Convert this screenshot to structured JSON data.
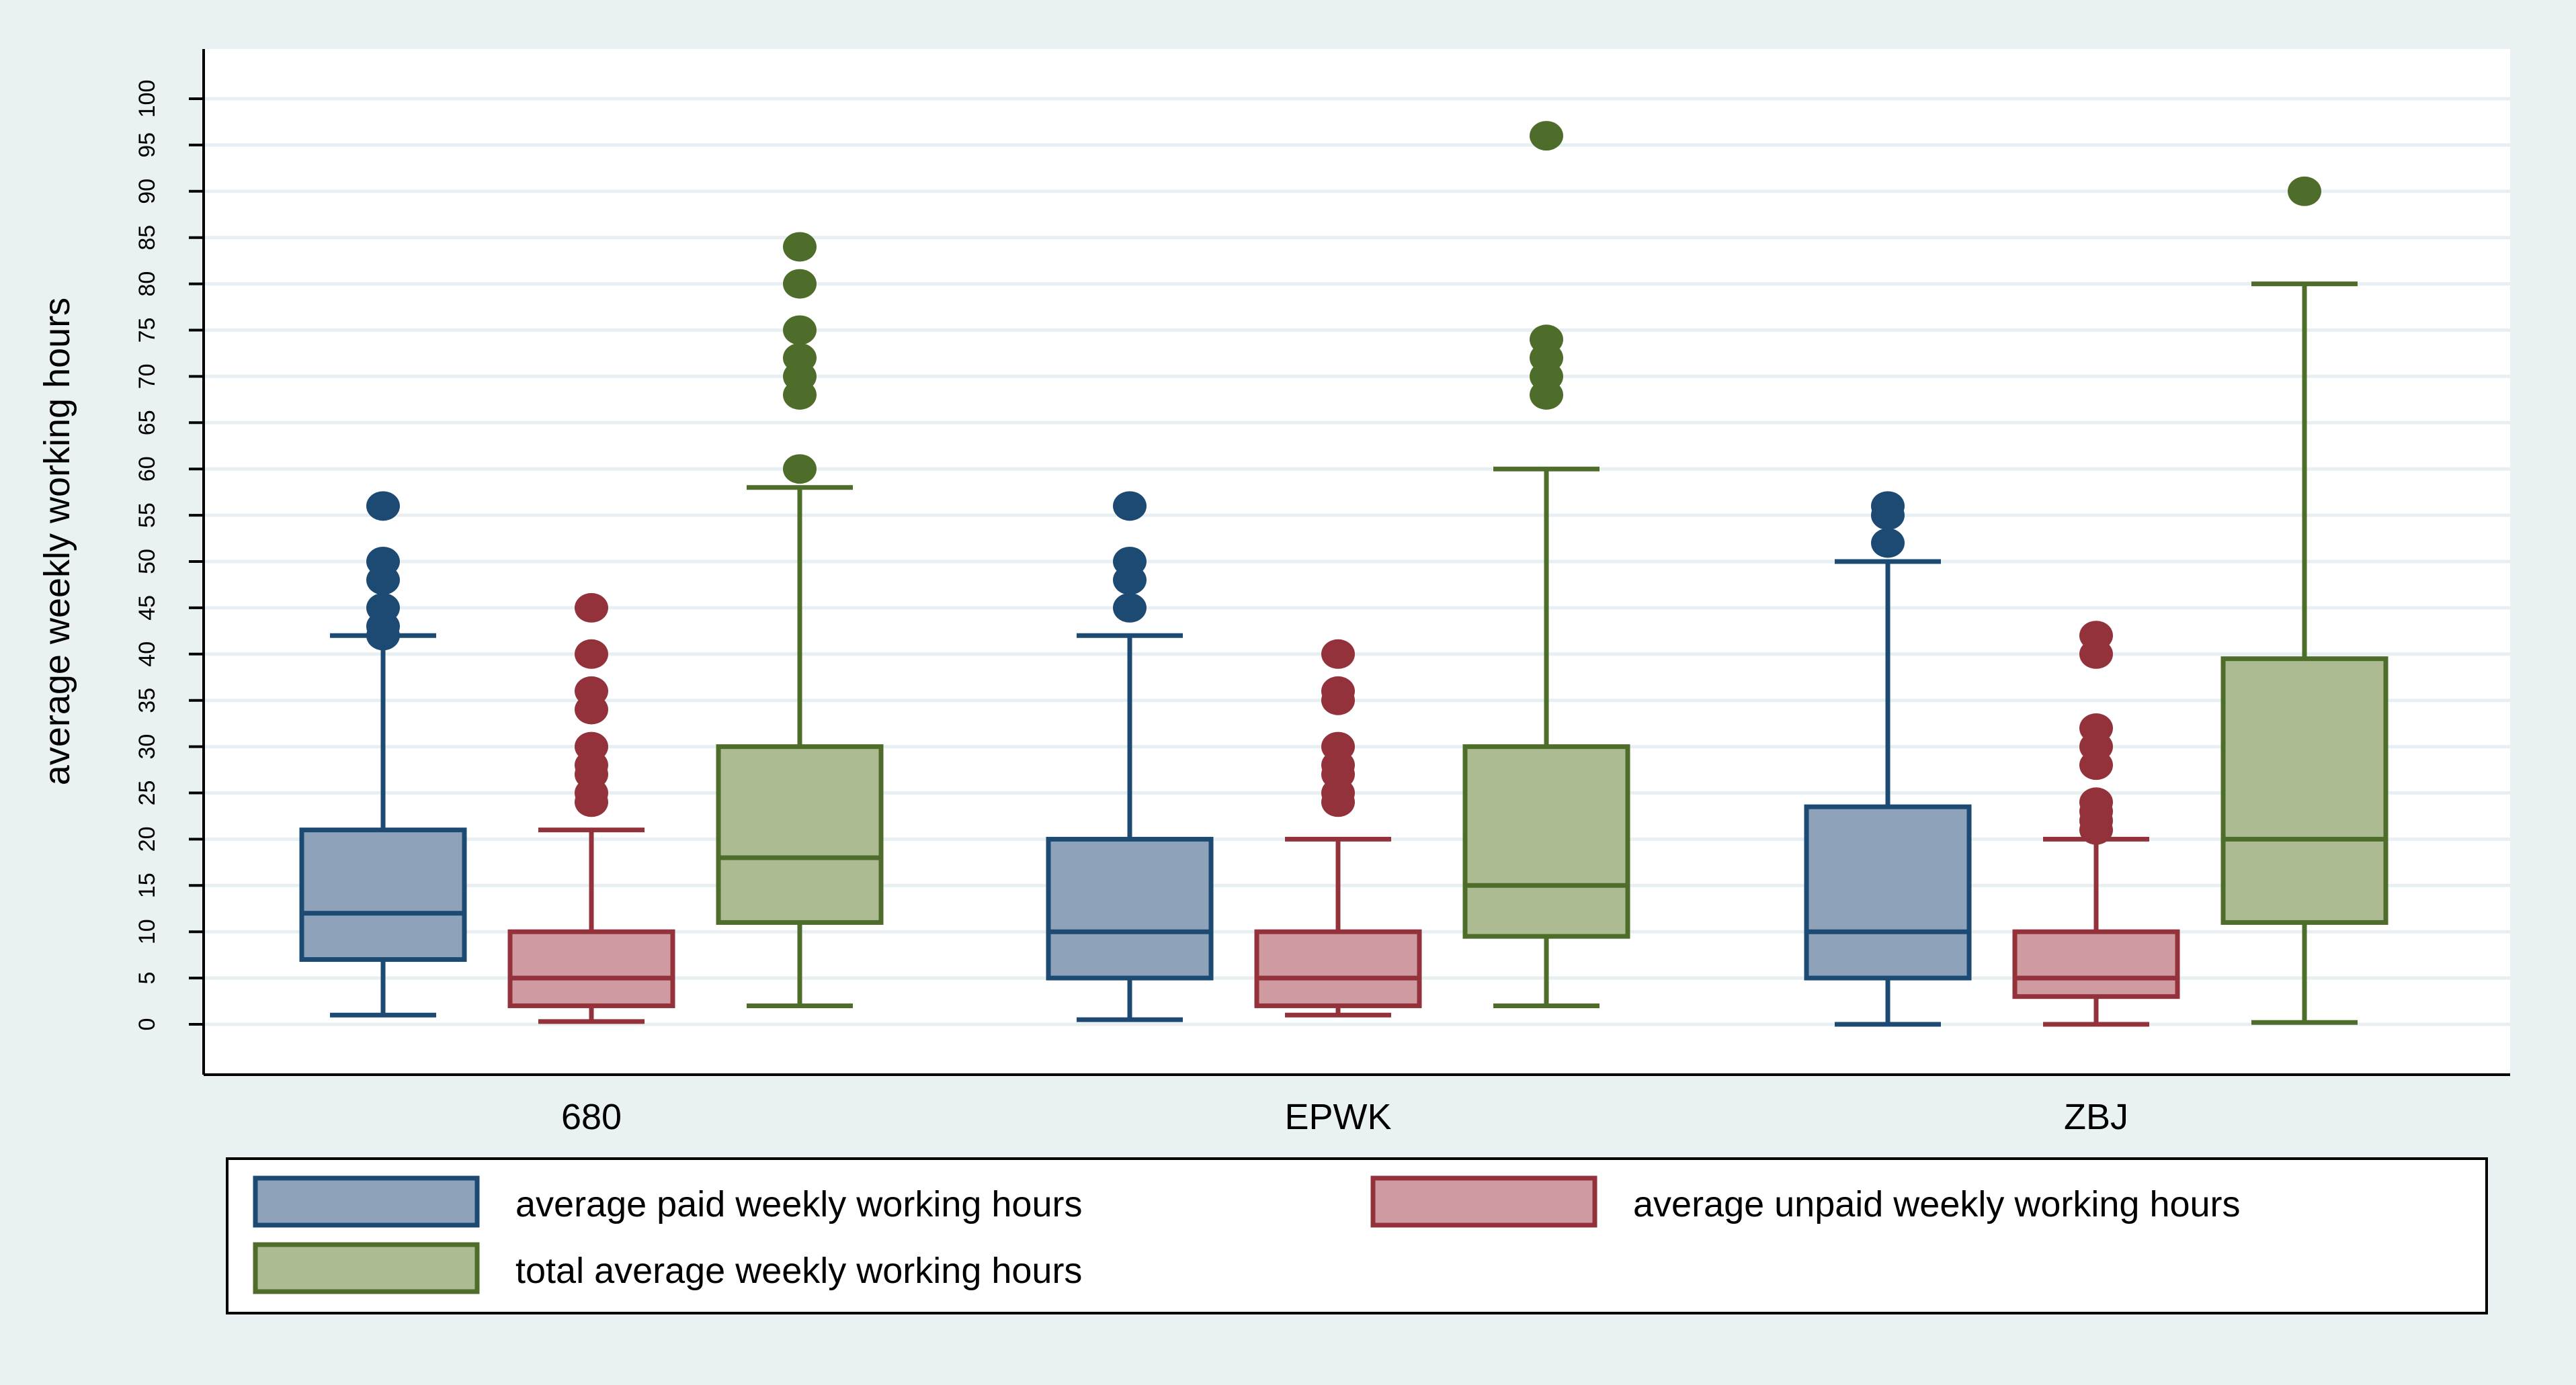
{
  "chart_data": {
    "type": "box",
    "title": "",
    "xlabel": "",
    "ylabel": "average weekly working hours",
    "ylim": [
      0,
      100
    ],
    "ytick_step": 5,
    "grid": true,
    "legend_position": "bottom",
    "categories": [
      "680",
      "EPWK",
      "ZBJ"
    ],
    "series": [
      {
        "name": "average paid weekly working hours",
        "fill": "#8ea3b9",
        "stroke": "#1d4a73",
        "boxes": [
          {
            "min": 1,
            "q1": 7,
            "median": 12,
            "q3": 21,
            "max": 42,
            "outliers": [
              42,
              43,
              45,
              48,
              50,
              56
            ]
          },
          {
            "min": 0.5,
            "q1": 5,
            "median": 10,
            "q3": 20,
            "max": 42,
            "outliers": [
              45,
              48,
              50,
              56
            ]
          },
          {
            "min": 0,
            "q1": 5,
            "median": 10,
            "q3": 23.5,
            "max": 50,
            "outliers": [
              52,
              55,
              56
            ]
          }
        ]
      },
      {
        "name": "average unpaid weekly working hours",
        "fill": "#cf9aa0",
        "stroke": "#94323c",
        "boxes": [
          {
            "min": 0.3,
            "q1": 2,
            "median": 5,
            "q3": 10,
            "max": 21,
            "outliers": [
              24,
              25,
              27,
              28,
              30,
              34,
              36,
              40,
              45
            ]
          },
          {
            "min": 1,
            "q1": 2,
            "median": 5,
            "q3": 10,
            "max": 20,
            "outliers": [
              24,
              25,
              27,
              28,
              30,
              35,
              36,
              40
            ]
          },
          {
            "min": 0,
            "q1": 3,
            "median": 5,
            "q3": 10,
            "max": 20,
            "outliers": [
              21,
              22,
              23,
              24,
              28,
              30,
              32,
              40,
              42
            ]
          }
        ]
      },
      {
        "name": "total average weekly working hours",
        "fill": "#acbb91",
        "stroke": "#4e6d2a",
        "boxes": [
          {
            "min": 2,
            "q1": 11,
            "median": 18,
            "q3": 30,
            "max": 58,
            "outliers": [
              60,
              68,
              70,
              72,
              75,
              80,
              84
            ]
          },
          {
            "min": 2,
            "q1": 9.5,
            "median": 15,
            "q3": 30,
            "max": 60,
            "outliers": [
              68,
              70,
              72,
              74,
              96
            ]
          },
          {
            "min": 0.2,
            "q1": 11,
            "median": 20,
            "q3": 39.5,
            "max": 80,
            "outliers": [
              90
            ]
          }
        ]
      }
    ]
  }
}
